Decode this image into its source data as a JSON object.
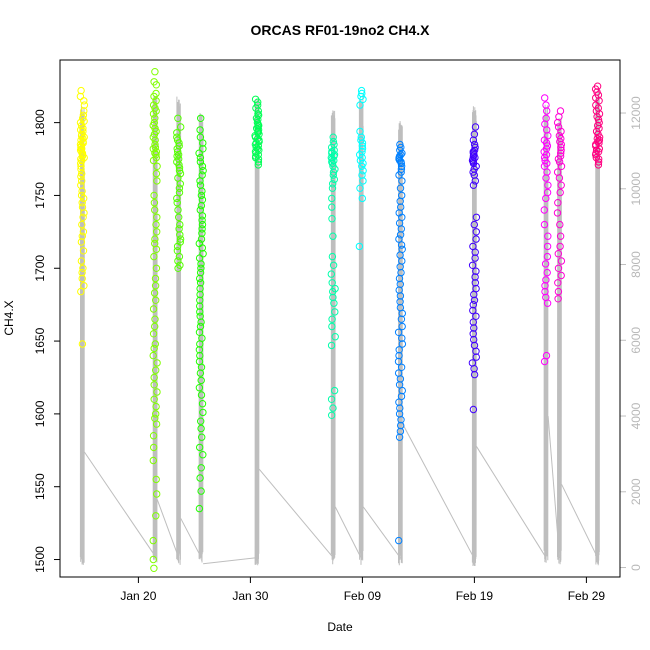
{
  "chart_data": {
    "type": "scatter",
    "title": "ORCAS RF01-19no2 CH4.X",
    "xlabel": "Date",
    "ylabel": "CH4.X",
    "x_axis": {
      "unit": "date",
      "range": [
        "2016-01-13",
        "2016-03-03"
      ],
      "ticks": [
        {
          "date": "2016-01-20",
          "label": "Jan 20"
        },
        {
          "date": "2016-01-30",
          "label": "Jan 30"
        },
        {
          "date": "2016-02-09",
          "label": "Feb 09"
        },
        {
          "date": "2016-02-19",
          "label": "Feb 19"
        },
        {
          "date": "2016-02-29",
          "label": "Feb 29"
        }
      ]
    },
    "y_axis": {
      "range": [
        1488,
        1843
      ],
      "ticks": [
        1500,
        1550,
        1600,
        1650,
        1700,
        1750,
        1800
      ]
    },
    "y2_axis": {
      "range": [
        -250,
        13400
      ],
      "ticks": [
        0,
        2000,
        4000,
        6000,
        8000,
        10000,
        12000
      ],
      "color": "#bebebe"
    },
    "grid": false,
    "legend": "none",
    "altitude_trace": {
      "color": "#bebebe",
      "flights": [
        {
          "date": "2016-01-15",
          "y2_min": 50,
          "y2_max": 12200,
          "y2_end": 3050
        },
        {
          "date": "2016-01-21.5",
          "y2_min": 100,
          "y2_max": 12500,
          "y2_end": 1800
        },
        {
          "date": "2016-01-23.6",
          "y2_min": 60,
          "y2_max": 12450,
          "y2_end": 1300
        },
        {
          "date": "2016-01-25.6",
          "y2_min": 70,
          "y2_max": 12000,
          "y2_end": 100
        },
        {
          "date": "2016-01-30.6",
          "y2_min": 60,
          "y2_max": 12400,
          "y2_end": 2600
        },
        {
          "date": "2016-02-06.4",
          "y2_min": 60,
          "y2_max": 12100,
          "y2_end": 1600
        },
        {
          "date": "2016-02-08.9",
          "y2_min": 40,
          "y2_max": 12500,
          "y2_end": 1600
        },
        {
          "date": "2016-02-12.4",
          "y2_min": 50,
          "y2_max": 11800,
          "y2_end": 3800
        },
        {
          "date": "2016-02-19",
          "y2_min": 30,
          "y2_max": 12200,
          "y2_end": 3200
        },
        {
          "date": "2016-02-25.4",
          "y2_min": 60,
          "y2_max": 12250,
          "y2_end": 4000
        },
        {
          "date": "2016-02-26.6",
          "y2_min": 50,
          "y2_max": 11900,
          "y2_end": 2200
        },
        {
          "date": "2016-03-01",
          "y2_min": 60,
          "y2_max": 12600,
          "y2_end": 2600
        }
      ]
    },
    "series": [
      {
        "date": "2016-01-15",
        "color": "#ffff00",
        "points": [
          1822,
          1818,
          1815,
          1812,
          1808,
          1805,
          1803,
          1801,
          1800,
          1798,
          1796,
          1795,
          1794,
          1792,
          1791,
          1790,
          1789,
          1788,
          1787,
          1786,
          1785,
          1784,
          1783,
          1782,
          1781,
          1780,
          1779,
          1778,
          1777,
          1776,
          1775,
          1774,
          1772,
          1770,
          1768,
          1765,
          1763,
          1760,
          1757,
          1753,
          1750,
          1748,
          1745,
          1742,
          1738,
          1735,
          1730,
          1725,
          1722,
          1718,
          1712,
          1705,
          1700,
          1697,
          1693,
          1688,
          1684,
          1648
        ]
      },
      {
        "date": "2016-01-21.5",
        "color": "#80ff00",
        "points": [
          1835,
          1828,
          1826,
          1820,
          1818,
          1815,
          1812,
          1810,
          1808,
          1806,
          1803,
          1800,
          1798,
          1796,
          1794,
          1792,
          1790,
          1788,
          1785,
          1783,
          1782,
          1780,
          1779,
          1778,
          1776,
          1774,
          1770,
          1765,
          1760,
          1750,
          1745,
          1740,
          1735,
          1730,
          1725,
          1720,
          1717,
          1713,
          1708,
          1700,
          1693,
          1688,
          1683,
          1678,
          1672,
          1665,
          1660,
          1655,
          1648,
          1645,
          1640,
          1635,
          1630,
          1625,
          1620,
          1615,
          1610,
          1605,
          1600,
          1597,
          1593,
          1585,
          1577,
          1568,
          1555,
          1545,
          1530,
          1513,
          1500,
          1494
        ]
      },
      {
        "date": "2016-01-23.6",
        "color": "#55ff00",
        "points": [
          1803,
          1797,
          1793,
          1790,
          1788,
          1786,
          1784,
          1782,
          1780,
          1778,
          1777,
          1775,
          1773,
          1771,
          1769,
          1767,
          1765,
          1762,
          1758,
          1755,
          1752,
          1748,
          1745,
          1740,
          1735,
          1730,
          1727,
          1723,
          1720,
          1718,
          1715,
          1712,
          1708,
          1705,
          1702,
          1700
        ]
      },
      {
        "date": "2016-01-25.6",
        "color": "#20ff00",
        "points": [
          1803,
          1795,
          1790,
          1786,
          1782,
          1779,
          1776,
          1773,
          1770,
          1767,
          1764,
          1760,
          1757,
          1753,
          1750,
          1747,
          1743,
          1740,
          1736,
          1733,
          1730,
          1727,
          1724,
          1720,
          1717,
          1714,
          1710,
          1707,
          1703,
          1700,
          1697,
          1693,
          1690,
          1686,
          1682,
          1678,
          1674,
          1670,
          1667,
          1663,
          1660,
          1656,
          1652,
          1648,
          1644,
          1640,
          1636,
          1632,
          1628,
          1623,
          1618,
          1613,
          1607,
          1601,
          1595,
          1590,
          1584,
          1577,
          1572,
          1563,
          1556,
          1547,
          1535
        ]
      },
      {
        "date": "2016-01-30.6",
        "color": "#00ff55",
        "points": [
          1816,
          1814,
          1812,
          1810,
          1808,
          1806,
          1805,
          1803,
          1802,
          1800,
          1799,
          1798,
          1797,
          1796,
          1795,
          1794,
          1793,
          1792,
          1791,
          1790,
          1789,
          1788,
          1787,
          1786,
          1785,
          1784,
          1783,
          1782,
          1781,
          1780,
          1779,
          1778,
          1777,
          1776,
          1775,
          1773,
          1771
        ]
      },
      {
        "date": "2016-02-06.4",
        "color": "#00ffaa",
        "points": [
          1790,
          1787,
          1785,
          1783,
          1781,
          1780,
          1779,
          1778,
          1777,
          1776,
          1775,
          1774,
          1773,
          1772,
          1770,
          1768,
          1766,
          1764,
          1761,
          1758,
          1755,
          1748,
          1742,
          1734,
          1722,
          1708,
          1702,
          1696,
          1690,
          1686,
          1684,
          1680,
          1676,
          1670,
          1665,
          1660,
          1653,
          1647,
          1616,
          1610,
          1604,
          1599
        ]
      },
      {
        "date": "2016-02-08.9",
        "color": "#00ffff",
        "points": [
          1822,
          1820,
          1818,
          1816,
          1812,
          1794,
          1790,
          1788,
          1786,
          1784,
          1782,
          1780,
          1778,
          1776,
          1774,
          1772,
          1770,
          1767,
          1764,
          1760,
          1755,
          1748,
          1715
        ]
      },
      {
        "date": "2016-02-12.4",
        "color": "#0080ff",
        "points": [
          1785,
          1783,
          1781,
          1779,
          1778,
          1777,
          1776,
          1775,
          1774,
          1773,
          1772,
          1770,
          1768,
          1766,
          1764,
          1760,
          1755,
          1750,
          1746,
          1742,
          1738,
          1735,
          1731,
          1727,
          1723,
          1720,
          1716,
          1713,
          1709,
          1705,
          1701,
          1697,
          1693,
          1689,
          1685,
          1681,
          1677,
          1673,
          1669,
          1665,
          1660,
          1656,
          1652,
          1648,
          1644,
          1640,
          1636,
          1632,
          1628,
          1624,
          1620,
          1616,
          1612,
          1608,
          1604,
          1600,
          1596,
          1592,
          1588,
          1584,
          1513
        ]
      },
      {
        "date": "2016-02-19",
        "color": "#4000ff",
        "points": [
          1797,
          1792,
          1788,
          1785,
          1783,
          1781,
          1780,
          1779,
          1778,
          1777,
          1776,
          1775,
          1774,
          1773,
          1772,
          1770,
          1768,
          1766,
          1764,
          1760,
          1757,
          1735,
          1730,
          1725,
          1720,
          1715,
          1711,
          1707,
          1702,
          1698,
          1694,
          1690,
          1686,
          1682,
          1678,
          1675,
          1671,
          1667,
          1663,
          1659,
          1655,
          1651,
          1647,
          1643,
          1639,
          1635,
          1631,
          1627,
          1603
        ]
      },
      {
        "date": "2016-02-25.4",
        "color": "#ff00ff",
        "points": [
          1817,
          1812,
          1808,
          1803,
          1799,
          1795,
          1791,
          1788,
          1786,
          1784,
          1782,
          1780,
          1778,
          1776,
          1774,
          1772,
          1770,
          1766,
          1762,
          1757,
          1752,
          1748,
          1740,
          1730,
          1722,
          1715,
          1708,
          1703,
          1697,
          1692,
          1688,
          1684,
          1680,
          1676,
          1640,
          1636
        ]
      },
      {
        "date": "2016-02-26.6",
        "color": "#ff00d5",
        "points": [
          1808,
          1804,
          1800,
          1797,
          1794,
          1791,
          1789,
          1787,
          1785,
          1783,
          1781,
          1779,
          1777,
          1775,
          1773,
          1770,
          1766,
          1762,
          1757,
          1752,
          1745,
          1738,
          1730,
          1722,
          1715,
          1710,
          1705,
          1700,
          1695,
          1690,
          1684,
          1679
        ]
      },
      {
        "date": "2016-03-01",
        "color": "#ff0080",
        "points": [
          1825,
          1823,
          1821,
          1819,
          1817,
          1815,
          1812,
          1810,
          1808,
          1806,
          1804,
          1802,
          1800,
          1798,
          1796,
          1794,
          1792,
          1790,
          1789,
          1788,
          1787,
          1786,
          1785,
          1784,
          1782,
          1781,
          1780,
          1779,
          1778,
          1776,
          1775,
          1773,
          1771
        ]
      }
    ]
  }
}
